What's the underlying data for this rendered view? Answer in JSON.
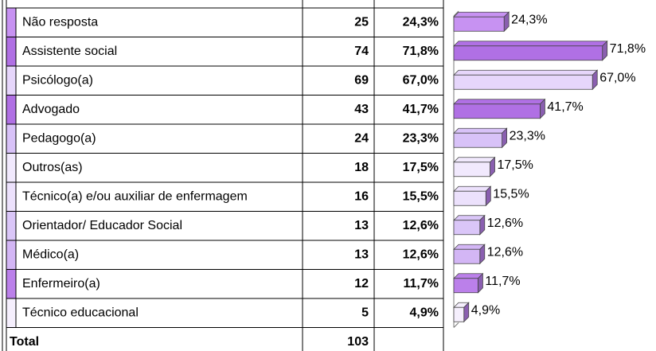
{
  "chart_data": {
    "type": "bar",
    "categories": [
      "Não resposta",
      "Assistente social",
      "Psicólogo(a)",
      "Advogado",
      "Pedagogo(a)",
      "Outros(as)",
      "Técnico(a) e/ou auxiliar de enfermagem",
      "Orientador/ Educador Social",
      "Médico(a)",
      "Enfermeiro(a)",
      "Técnico educacional"
    ],
    "counts": [
      25,
      74,
      69,
      43,
      24,
      18,
      16,
      13,
      13,
      12,
      5
    ],
    "values": [
      24.3,
      71.8,
      67.0,
      41.7,
      23.3,
      17.5,
      15.5,
      12.6,
      12.6,
      11.7,
      4.9
    ],
    "value_labels": [
      "24,3%",
      "71,8%",
      "67,0%",
      "41,7%",
      "23,3%",
      "17,5%",
      "15,5%",
      "12,6%",
      "12,6%",
      "11,7%",
      "4,9%"
    ],
    "colors": [
      "#c792f2",
      "#b070e4",
      "#e6d6fb",
      "#b070e4",
      "#d8c2f8",
      "#f1e9fd",
      "#ece1fc",
      "#dac6f8",
      "#d3b6f5",
      "#bb80ea",
      "#f5effd"
    ],
    "total_label": "Total",
    "total": 103,
    "xlim": [
      0,
      100
    ]
  }
}
